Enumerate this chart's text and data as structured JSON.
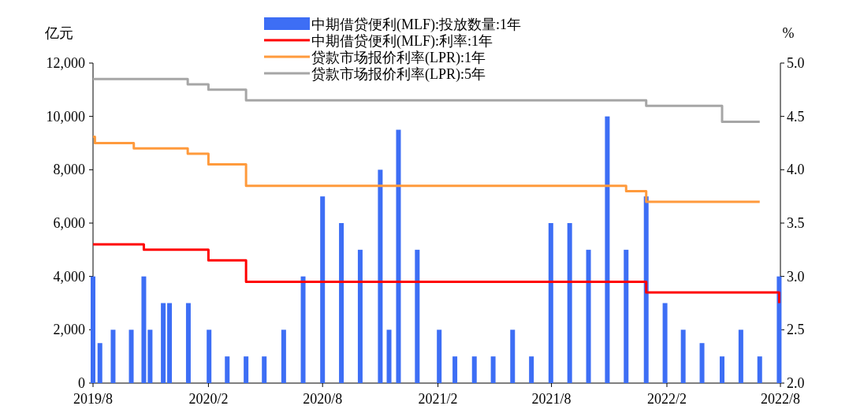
{
  "chart_data": {
    "type": "bar",
    "ylabel": "亿元",
    "y2label": "%",
    "legend": "top",
    "xlim": [
      "2019-08-01",
      "2022-08-01"
    ],
    "xticks": [
      {
        "value": "2019-08-01",
        "label": "2019/8"
      },
      {
        "value": "2020-02-01",
        "label": "2020/2"
      },
      {
        "value": "2020-08-01",
        "label": "2020/8"
      },
      {
        "value": "2021-02-01",
        "label": "2021/2"
      },
      {
        "value": "2021-08-01",
        "label": "2021/8"
      },
      {
        "value": "2022-02-01",
        "label": "2022/2"
      },
      {
        "value": "2022-08-01",
        "label": "2022/8"
      }
    ],
    "ylim": [
      0,
      12000
    ],
    "yticks": [
      {
        "value": 0,
        "label": "0"
      },
      {
        "value": 2000,
        "label": "2,000"
      },
      {
        "value": 4000,
        "label": "4,000"
      },
      {
        "value": 6000,
        "label": "6,000"
      },
      {
        "value": 8000,
        "label": "8,000"
      },
      {
        "value": 10000,
        "label": "10,000"
      },
      {
        "value": 12000,
        "label": "12,000"
      }
    ],
    "y2lim": [
      2.0,
      5.0
    ],
    "y2ticks": [
      {
        "value": 2,
        "label": "2.0"
      },
      2.5,
      {
        "value": 3,
        "label": "3.0"
      },
      3.5,
      {
        "value": 4,
        "label": "4.0"
      },
      4.5,
      {
        "value": 5,
        "label": "5.0"
      }
    ],
    "series": [
      {
        "name": "中期借贷便利(MLF):投放数量:1年",
        "color": "#3d6ef5",
        "x": [
          "2019-08-01",
          "2019-08-12",
          "2019-09-02",
          "2019-10-01",
          "2019-10-21",
          "2019-10-31",
          "2019-11-21",
          "2019-12-01",
          "2019-12-31",
          "2020-02-02",
          "2020-03-02",
          "2020-04-01",
          "2020-04-30",
          "2020-05-31",
          "2020-07-01",
          "2020-08-01",
          "2020-08-31",
          "2020-09-30",
          "2020-11-01",
          "2020-11-15",
          "2020-11-30",
          "2020-12-30",
          "2021-02-03",
          "2021-02-28",
          "2021-03-31",
          "2021-04-30",
          "2021-05-31",
          "2021-06-30",
          "2021-07-31",
          "2021-08-30",
          "2021-09-29",
          "2021-10-29",
          "2021-11-28",
          "2021-12-30",
          "2022-01-29",
          "2022-02-27",
          "2022-03-29",
          "2022-04-30",
          "2022-05-30",
          "2022-06-29",
          "2022-07-30"
        ],
        "values": [
          4000,
          1500,
          2000,
          2000,
          4000,
          2000,
          3000,
          3000,
          3000,
          2000,
          1000,
          1000,
          1000,
          2000,
          4000,
          7000,
          6000,
          5000,
          8000,
          2000,
          9500,
          5000,
          2000,
          1000,
          1000,
          1000,
          2000,
          1000,
          6000,
          6000,
          5000,
          10000,
          5000,
          7000,
          3000,
          2000,
          1500,
          1000,
          2000,
          1000,
          4000
        ]
      },
      {
        "name": "中期借贷便利(MLF):利率:1年",
        "type": "step",
        "axis": "y2",
        "color": "#ff0000",
        "x": [
          "2019-08-01",
          "2019-10-21",
          "2020-02-01",
          "2020-04-01",
          "2021-12-30",
          "2022-07-30"
        ],
        "values": [
          3.3,
          3.25,
          3.15,
          2.95,
          2.85,
          2.75
        ]
      },
      {
        "name": "贷款市场报价利率(LPR):1年",
        "type": "step",
        "axis": "y2",
        "color": "#ff9a3c",
        "x": [
          "2019-08-01",
          "2019-08-04",
          "2019-10-05",
          "2019-12-30",
          "2020-02-01",
          "2020-04-01",
          "2021-11-28",
          "2021-12-30",
          "2022-06-29"
        ],
        "values": [
          4.31,
          4.25,
          4.2,
          4.15,
          4.05,
          3.85,
          3.8,
          3.7,
          3.7
        ]
      },
      {
        "name": "贷款市场报价利率(LPR):5年",
        "type": "step",
        "axis": "y2",
        "color": "#a6a6a6",
        "x": [
          "2019-08-01",
          "2019-12-30",
          "2020-02-01",
          "2020-04-01",
          "2021-12-30",
          "2022-04-30",
          "2022-06-29"
        ],
        "values": [
          4.85,
          4.8,
          4.75,
          4.65,
          4.6,
          4.45,
          4.45
        ]
      }
    ]
  }
}
